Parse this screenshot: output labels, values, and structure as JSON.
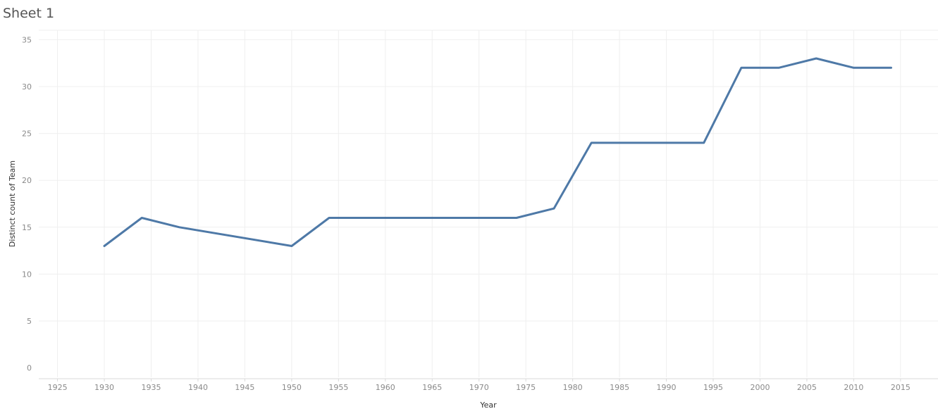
{
  "sheet": {
    "title": "Sheet 1"
  },
  "chart_data": {
    "type": "line",
    "xlabel": "Year",
    "ylabel": "Distinct count of Team",
    "xlim": [
      1923,
      2019
    ],
    "ylim": [
      -1,
      36
    ],
    "x_ticks": [
      1925,
      1930,
      1935,
      1940,
      1945,
      1950,
      1955,
      1960,
      1965,
      1970,
      1975,
      1980,
      1985,
      1990,
      1995,
      2000,
      2005,
      2010,
      2015
    ],
    "y_ticks": [
      0,
      5,
      10,
      15,
      20,
      25,
      30,
      35
    ],
    "grid": true,
    "series": [
      {
        "color": "#4e79a7",
        "x": [
          1930,
          1934,
          1938,
          1950,
          1954,
          1958,
          1962,
          1966,
          1970,
          1974,
          1978,
          1982,
          1986,
          1990,
          1994,
          1998,
          2002,
          2006,
          2010,
          2014
        ],
        "values": [
          13,
          16,
          15,
          13,
          16,
          16,
          16,
          16,
          16,
          16,
          17,
          24,
          24,
          24,
          24,
          32,
          32,
          33,
          32,
          32
        ]
      }
    ]
  }
}
